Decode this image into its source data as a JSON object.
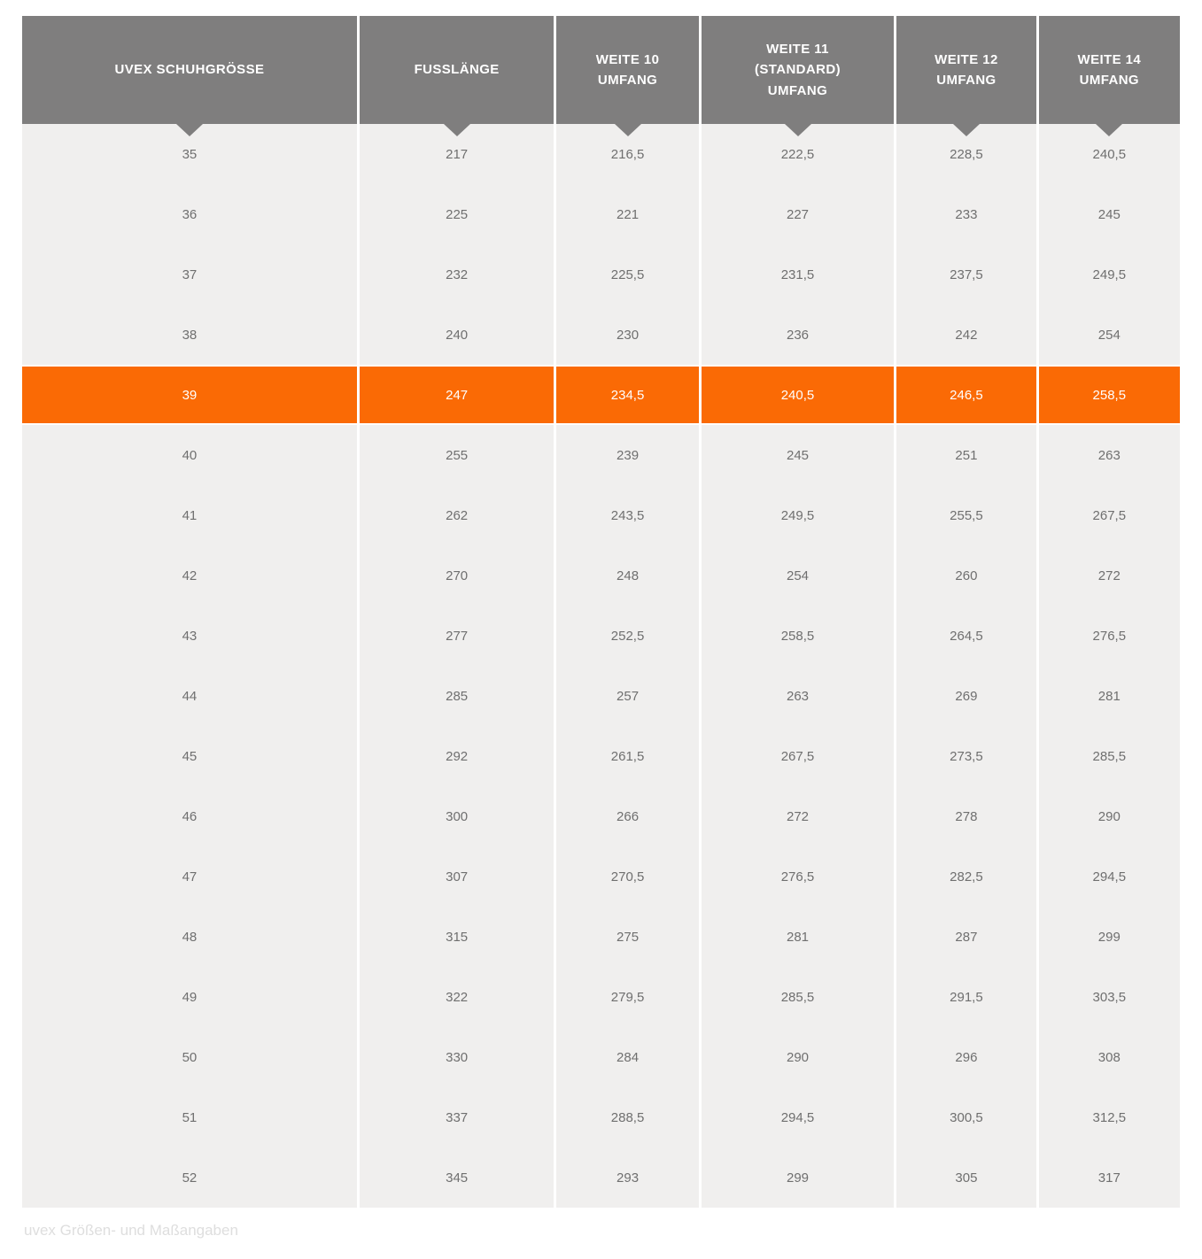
{
  "chart_data": {
    "type": "table",
    "title": "uvex Größen- und Maßangaben",
    "columns": [
      "UVEX SCHUHGRÖSSE",
      "FUSSLÄNGE",
      "WEITE 10\nUMFANG",
      "WEITE 11\n(STANDARD)\nUMFANG",
      "WEITE 12\nUMFANG",
      "WEITE 14\nUMFANG"
    ],
    "rows": [
      [
        "35",
        "217",
        "216,5",
        "222,5",
        "228,5",
        "240,5"
      ],
      [
        "36",
        "225",
        "221",
        "227",
        "233",
        "245"
      ],
      [
        "37",
        "232",
        "225,5",
        "231,5",
        "237,5",
        "249,5"
      ],
      [
        "38",
        "240",
        "230",
        "236",
        "242",
        "254"
      ],
      [
        "39",
        "247",
        "234,5",
        "240,5",
        "246,5",
        "258,5"
      ],
      [
        "40",
        "255",
        "239",
        "245",
        "251",
        "263"
      ],
      [
        "41",
        "262",
        "243,5",
        "249,5",
        "255,5",
        "267,5"
      ],
      [
        "42",
        "270",
        "248",
        "254",
        "260",
        "272"
      ],
      [
        "43",
        "277",
        "252,5",
        "258,5",
        "264,5",
        "276,5"
      ],
      [
        "44",
        "285",
        "257",
        "263",
        "269",
        "281"
      ],
      [
        "45",
        "292",
        "261,5",
        "267,5",
        "273,5",
        "285,5"
      ],
      [
        "46",
        "300",
        "266",
        "272",
        "278",
        "290"
      ],
      [
        "47",
        "307",
        "270,5",
        "276,5",
        "282,5",
        "294,5"
      ],
      [
        "48",
        "315",
        "275",
        "281",
        "287",
        "299"
      ],
      [
        "49",
        "322",
        "279,5",
        "285,5",
        "291,5",
        "303,5"
      ],
      [
        "50",
        "330",
        "284",
        "290",
        "296",
        "308"
      ],
      [
        "51",
        "337",
        "288,5",
        "294,5",
        "300,5",
        "312,5"
      ],
      [
        "52",
        "345",
        "293",
        "299",
        "305",
        "317"
      ]
    ],
    "highlight_row_index": 4,
    "highlighted_row_label": "39"
  },
  "colors": {
    "header_bg": "#7f7e7e",
    "header_text": "#ffffff",
    "body_bg": "#f0efee",
    "body_text": "#6f6f6f",
    "highlight_bg": "#fa6a05",
    "highlight_text": "#ffffff",
    "caption_text": "#dedede"
  }
}
